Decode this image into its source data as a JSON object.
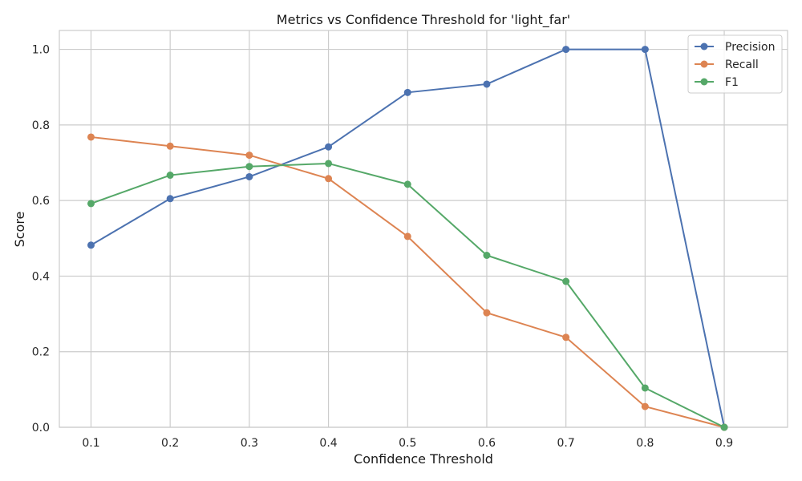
{
  "chart_data": {
    "type": "line",
    "title": "Metrics vs Confidence Threshold for 'light_far'",
    "xlabel": "Confidence Threshold",
    "ylabel": "Score",
    "x": [
      0.1,
      0.2,
      0.3,
      0.4,
      0.5,
      0.6,
      0.7,
      0.8,
      0.9
    ],
    "x_tick_labels": [
      "0.1",
      "0.2",
      "0.3",
      "0.4",
      "0.5",
      "0.6",
      "0.7",
      "0.8",
      "0.9"
    ],
    "y_tick_labels": [
      "0.0",
      "0.2",
      "0.4",
      "0.6",
      "0.8",
      "1.0"
    ],
    "y_ticks": [
      0,
      0.2,
      0.4,
      0.6,
      0.8,
      1.0
    ],
    "xlim": [
      0.06,
      0.98
    ],
    "ylim": [
      0,
      1.05
    ],
    "grid": true,
    "legend_position": "top-right",
    "series": [
      {
        "name": "Precision",
        "color": "#4c72b0",
        "values": [
          0.482,
          0.605,
          0.663,
          0.742,
          0.886,
          0.908,
          1.0,
          1.0,
          0.0
        ]
      },
      {
        "name": "Recall",
        "color": "#dd8452",
        "values": [
          0.768,
          0.744,
          0.72,
          0.658,
          0.505,
          0.303,
          0.238,
          0.055,
          0.0
        ]
      },
      {
        "name": "F1",
        "color": "#55a868",
        "values": [
          0.592,
          0.667,
          0.69,
          0.698,
          0.643,
          0.455,
          0.386,
          0.104,
          0.0
        ]
      }
    ]
  }
}
